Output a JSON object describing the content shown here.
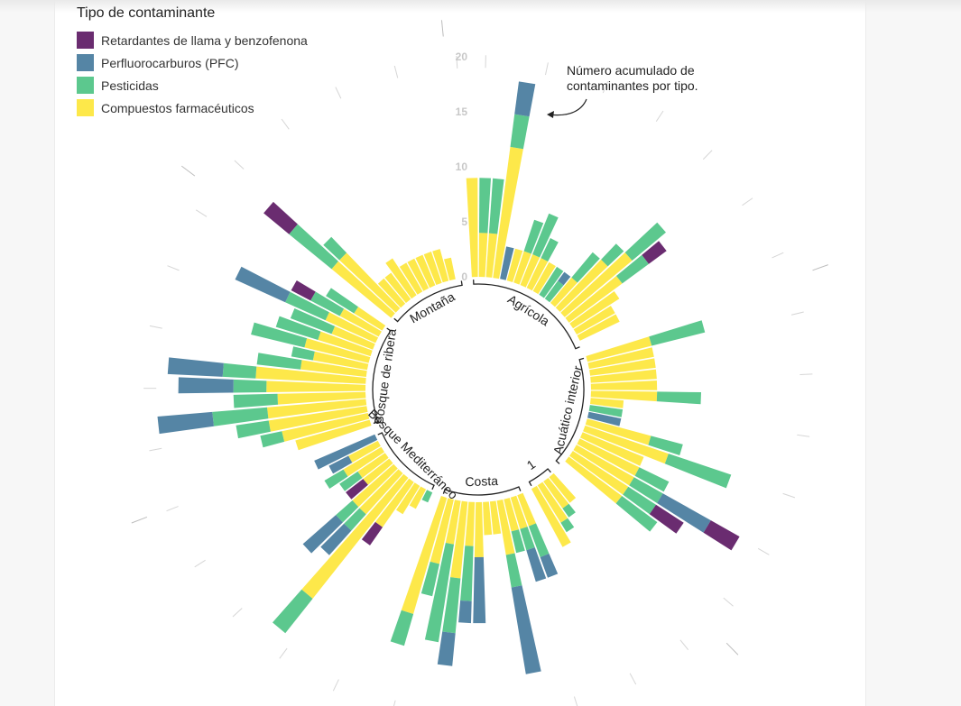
{
  "legend": {
    "title": "Tipo de contaminante",
    "items": [
      {
        "label": "Retardantes de llama y benzofenona",
        "color": "#6a2c70"
      },
      {
        "label": "Perfluorocarburos (PFC)",
        "color": "#5585a5"
      },
      {
        "label": "Pesticidas",
        "color": "#5cc88e"
      },
      {
        "label": "Compuestos farmacéuticos",
        "color": "#fde84a"
      }
    ]
  },
  "annotation": {
    "line1": "Número acumulado de",
    "line2": "contaminantes por tipo."
  },
  "chart_data": {
    "type": "bar",
    "layout": "radial-stacked",
    "radial_ticks": [
      0,
      5,
      10,
      15,
      20
    ],
    "ylim": [
      0,
      20
    ],
    "series_order": [
      "Compuestos farmacéuticos",
      "Pesticidas",
      "Perfluorocarburos (PFC)",
      "Retardantes de llama y benzofenona"
    ],
    "groups": [
      {
        "name": "Agrícola",
        "bars": [
          [
            9,
            0,
            0,
            0
          ],
          [
            4,
            5,
            0,
            0
          ],
          [
            4,
            5,
            0,
            0
          ],
          [
            12,
            3,
            3,
            0
          ],
          [
            0,
            0,
            3,
            0
          ],
          [
            3,
            0,
            0,
            0
          ],
          [
            3,
            3,
            0,
            0
          ],
          [
            3,
            4,
            0,
            0
          ],
          [
            3,
            2,
            0,
            0
          ],
          [
            3,
            0,
            0,
            0
          ],
          [
            0,
            3,
            0,
            0
          ],
          [
            0,
            2,
            1,
            0
          ],
          [
            3,
            3,
            0,
            0
          ],
          [
            6,
            2,
            0,
            0
          ],
          [
            8,
            4,
            0,
            0
          ],
          [
            6,
            3,
            0,
            2
          ],
          [
            5,
            0,
            0,
            0
          ],
          [
            4,
            0,
            0,
            0
          ],
          [
            4,
            0,
            0,
            0
          ],
          [
            0,
            0,
            0,
            0
          ]
        ]
      },
      {
        "name": "Acuático interior",
        "bars": [
          [
            6,
            5,
            0,
            0
          ],
          [
            6,
            0,
            0,
            0
          ],
          [
            6,
            0,
            0,
            0
          ],
          [
            6,
            0,
            0,
            0
          ],
          [
            6,
            0,
            0,
            0
          ],
          [
            6,
            4,
            0,
            0
          ],
          [
            3,
            0,
            0,
            0
          ],
          [
            0,
            3,
            0,
            0
          ],
          [
            0,
            0,
            3,
            0
          ],
          [
            6,
            3,
            0,
            0
          ],
          [
            8,
            6,
            0,
            0
          ],
          [
            6,
            0,
            0,
            0
          ],
          [
            6,
            3,
            0,
            0
          ],
          [
            6,
            3,
            5,
            3
          ],
          [
            6,
            3,
            0,
            3
          ],
          [
            6,
            4,
            0,
            0
          ],
          [
            0,
            0,
            0,
            0
          ]
        ]
      },
      {
        "name": "1",
        "bars": [
          [
            3,
            0,
            0,
            0
          ],
          [
            3,
            1,
            0,
            0
          ],
          [
            4,
            1,
            0,
            0
          ],
          [
            6,
            0,
            0,
            0
          ]
        ]
      },
      {
        "name": "Costa",
        "bars": [
          [
            3,
            3,
            2,
            0
          ],
          [
            3,
            2,
            3,
            0
          ],
          [
            3,
            2,
            0,
            0
          ],
          [
            5,
            3,
            8,
            0
          ],
          [
            3,
            0,
            0,
            0
          ],
          [
            3,
            0,
            0,
            0
          ],
          [
            5,
            0,
            6,
            0
          ],
          [
            4,
            5,
            2,
            0
          ],
          [
            7,
            5,
            3,
            0
          ],
          [
            4,
            9,
            0,
            0
          ],
          [
            6,
            3,
            0,
            0
          ],
          [
            11,
            3,
            0,
            0
          ]
        ]
      },
      {
        "name": "Bosque Mediterráneo",
        "bars": [
          [
            0,
            1,
            0,
            0
          ],
          [
            2,
            0,
            0,
            0
          ],
          [
            3,
            0,
            0,
            0
          ],
          [
            5,
            0,
            0,
            2
          ],
          [
            14,
            4,
            0,
            0
          ],
          [
            5,
            2,
            3,
            0
          ],
          [
            5,
            2,
            4,
            0
          ],
          [
            3,
            0,
            0,
            2
          ],
          [
            3,
            2,
            0,
            0
          ],
          [
            4,
            2,
            0,
            0
          ],
          [
            3,
            0,
            2,
            0
          ],
          [
            0,
            0,
            6,
            0
          ]
        ]
      },
      {
        "name": "Bosque de ribera",
        "bars": [
          [
            7,
            0,
            0,
            0
          ],
          [
            8,
            2,
            0,
            0
          ],
          [
            9,
            3,
            0,
            0
          ],
          [
            9,
            5,
            5,
            0
          ],
          [
            8,
            4,
            0,
            0
          ],
          [
            9,
            3,
            5,
            0
          ],
          [
            10,
            3,
            5,
            0
          ],
          [
            6,
            4,
            0,
            0
          ],
          [
            5,
            2,
            0,
            0
          ],
          [
            6,
            5,
            0,
            0
          ],
          [
            5,
            4,
            0,
            0
          ],
          [
            4,
            4,
            0,
            0
          ],
          [
            5,
            4,
            5,
            0
          ],
          [
            4,
            3,
            0,
            2
          ],
          [
            3,
            3,
            0,
            0
          ]
        ]
      },
      {
        "name": "Montaña",
        "bars": [
          [
            7,
            5,
            0,
            3
          ],
          [
            7,
            2,
            0,
            0
          ],
          [
            3,
            0,
            0,
            0
          ],
          [
            3,
            0,
            0,
            0
          ],
          [
            4,
            0,
            0,
            0
          ],
          [
            3,
            0,
            0,
            0
          ],
          [
            3,
            0,
            0,
            0
          ],
          [
            3,
            0,
            0,
            0
          ],
          [
            3,
            0,
            0,
            0
          ],
          [
            3,
            0,
            0,
            0
          ],
          [
            2,
            0,
            0,
            0
          ],
          [
            0,
            0,
            0,
            0
          ]
        ]
      }
    ]
  }
}
